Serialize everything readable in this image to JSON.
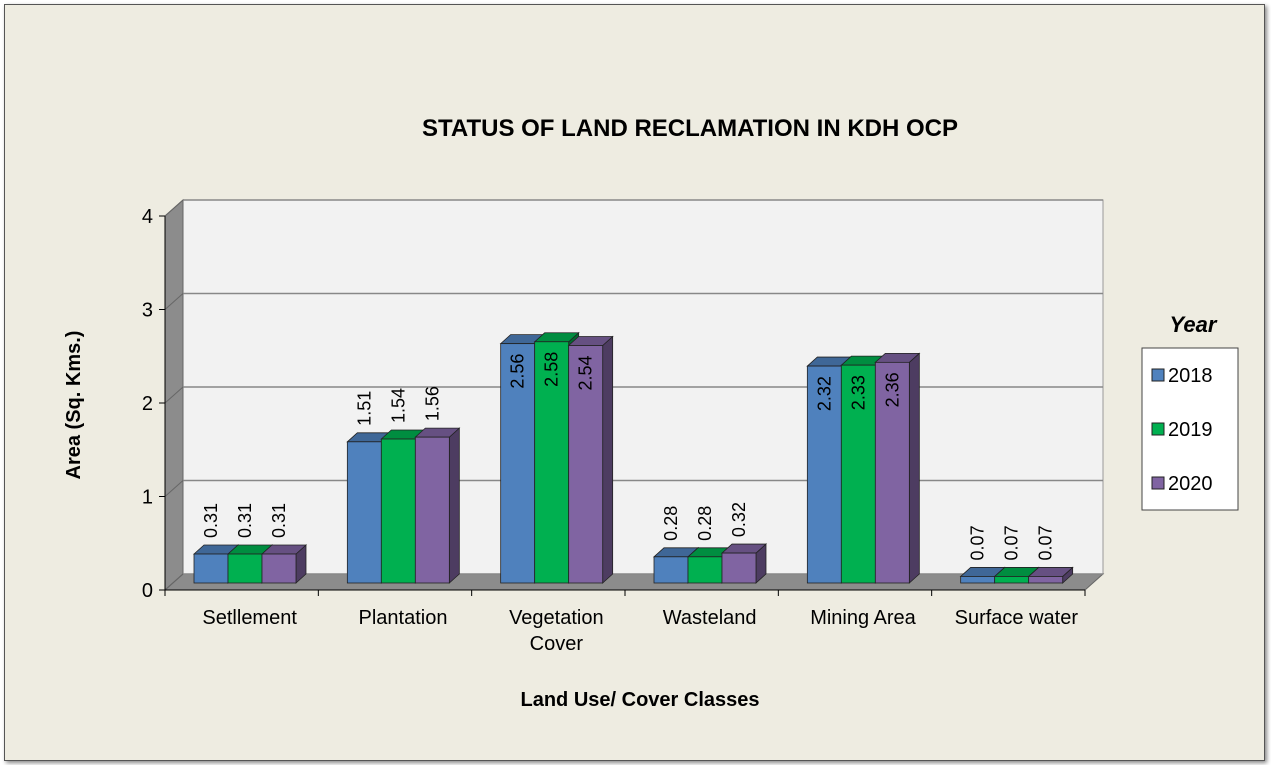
{
  "chart_data": {
    "type": "bar3d",
    "title": "STATUS OF LAND RECLAMATION  IN KDH OCP",
    "x_label": "Land Use/ Cover Classes",
    "y_label": "Area (Sq. Kms.)",
    "legend_title": "Year",
    "legend_position": "right",
    "grid": true,
    "categories": [
      "Setllement",
      "Plantation",
      "Vegetation Cover",
      "Wasteland",
      "Mining Area",
      "Surface water"
    ],
    "series": [
      {
        "name": "2018",
        "color": "#4f81bd",
        "values": [
          0.31,
          1.51,
          2.56,
          0.28,
          2.32,
          0.07
        ]
      },
      {
        "name": "2019",
        "color": "#00b050",
        "values": [
          0.31,
          1.54,
          2.58,
          0.28,
          2.33,
          0.07
        ]
      },
      {
        "name": "2020",
        "color": "#8064a2",
        "values": [
          0.31,
          1.56,
          2.54,
          0.32,
          2.36,
          0.07
        ]
      }
    ],
    "ylim": [
      0,
      4
    ],
    "yticks": [
      0,
      1,
      2,
      3,
      4
    ]
  }
}
